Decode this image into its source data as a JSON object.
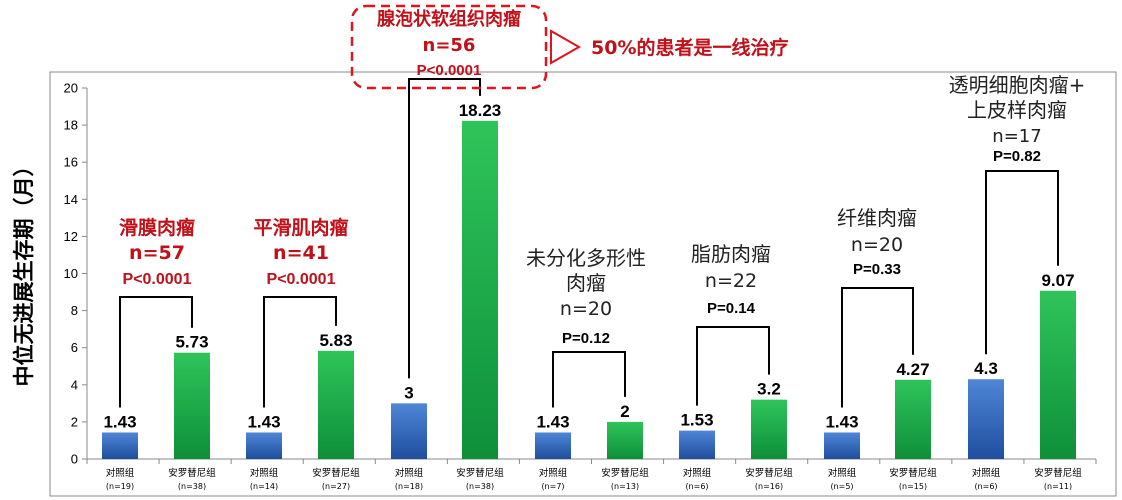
{
  "chart_data": {
    "type": "bar",
    "ylabel": "中位无进展生存期（月）",
    "ylim": [
      0,
      20
    ],
    "yticks": [
      0,
      2,
      4,
      6,
      8,
      10,
      12,
      14,
      16,
      18,
      20
    ],
    "grid": false,
    "bars": [
      {
        "category": "对照组",
        "n": "(n=19)",
        "value": 1.43,
        "label": "1.43",
        "series": "control"
      },
      {
        "category": "安罗替尼组",
        "n": "(n=38)",
        "value": 5.73,
        "label": "5.73",
        "series": "anlotinib"
      },
      {
        "category": "对照组",
        "n": "(n=14)",
        "value": 1.43,
        "label": "1.43",
        "series": "control"
      },
      {
        "category": "安罗替尼组",
        "n": "(n=27)",
        "value": 5.83,
        "label": "5.83",
        "series": "anlotinib"
      },
      {
        "category": "对照组",
        "n": "(n=18)",
        "value": 3,
        "label": "3",
        "series": "control"
      },
      {
        "category": "安罗替尼组",
        "n": "(n=38)",
        "value": 18.23,
        "label": "18.23",
        "series": "anlotinib"
      },
      {
        "category": "对照组",
        "n": "(n=7)",
        "value": 1.43,
        "label": "1.43",
        "series": "control"
      },
      {
        "category": "安罗替尼组",
        "n": "(n=13)",
        "value": 2,
        "label": "2",
        "series": "anlotinib"
      },
      {
        "category": "对照组",
        "n": "(n=6)",
        "value": 1.53,
        "label": "1.53",
        "series": "control"
      },
      {
        "category": "安罗替尼组",
        "n": "(n=16)",
        "value": 3.2,
        "label": "3.2",
        "series": "anlotinib"
      },
      {
        "category": "对照组",
        "n": "(n=5)",
        "value": 1.43,
        "label": "1.43",
        "series": "control"
      },
      {
        "category": "安罗替尼组",
        "n": "(n=15)",
        "value": 4.27,
        "label": "4.27",
        "series": "anlotinib"
      },
      {
        "category": "对照组",
        "n": "(n=6)",
        "value": 4.3,
        "label": "4.3",
        "series": "control"
      },
      {
        "category": "安罗替尼组",
        "n": "(n=11)",
        "value": 9.07,
        "label": "9.07",
        "series": "anlotinib"
      }
    ],
    "groups": [
      {
        "lines": [
          "滑膜肉瘤",
          "n=57"
        ],
        "p": "P<0.0001",
        "emphasis": true
      },
      {
        "lines": [
          "平滑肌肉瘤",
          "n=41"
        ],
        "p": "P<0.0001",
        "emphasis": true
      },
      {
        "lines": [
          "腺泡状软组织肉瘤",
          "n=56"
        ],
        "p": "P<0.0001",
        "emphasis": true,
        "boxed": true
      },
      {
        "lines": [
          "未分化多形性",
          "肉瘤",
          "n=20"
        ],
        "p": "P=0.12",
        "emphasis": false
      },
      {
        "lines": [
          "脂肪肉瘤",
          "n=22"
        ],
        "p": "P=0.14",
        "emphasis": false
      },
      {
        "lines": [
          "纤维肉瘤",
          "n=20"
        ],
        "p": "P=0.33",
        "emphasis": false
      },
      {
        "lines": [
          "透明细胞肉瘤+",
          "上皮样肉瘤",
          "n=17"
        ],
        "p": "P=0.82",
        "emphasis": false
      }
    ],
    "callout": "50%的患者是一线治疗",
    "colors": {
      "control_top": "#4f86d6",
      "control_bottom": "#1f4e9e",
      "anlotinib_top": "#2fc45a",
      "anlotinib_bottom": "#0e8f3a",
      "emphasis_text": "#c0101a",
      "callout_border": "#e0141e"
    }
  }
}
